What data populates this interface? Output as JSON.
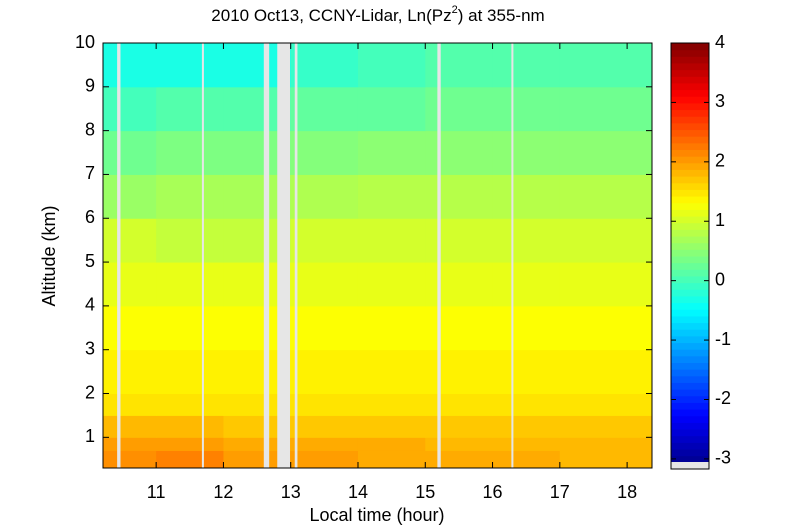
{
  "chart_data": {
    "type": "heatmap",
    "title": [
      "2010 Oct13, CCNY-Lidar, Ln(Pz",
      "2",
      ") at 355-nm"
    ],
    "xlabel": "Local time (hour)",
    "ylabel": "Altitude (km)",
    "xbins": [
      10.21,
      11,
      12,
      13,
      14,
      15,
      16,
      17,
      18.37
    ],
    "ybins": [
      0.3,
      0.7,
      1,
      1.5,
      2,
      3,
      4,
      5,
      6,
      7,
      8,
      9,
      10
    ],
    "values": [
      [
        2.1,
        2.2,
        2.0,
        2.0,
        1.9,
        1.9,
        1.9,
        1.8
      ],
      [
        2.0,
        2.0,
        1.9,
        1.9,
        1.9,
        1.8,
        1.8,
        1.8
      ],
      [
        1.8,
        1.8,
        1.7,
        1.7,
        1.7,
        1.7,
        1.7,
        1.7
      ],
      [
        1.5,
        1.5,
        1.5,
        1.5,
        1.5,
        1.5,
        1.5,
        1.5
      ],
      [
        1.4,
        1.4,
        1.4,
        1.4,
        1.4,
        1.4,
        1.4,
        1.4
      ],
      [
        1.3,
        1.3,
        1.3,
        1.3,
        1.3,
        1.3,
        1.3,
        1.3
      ],
      [
        1.15,
        1.15,
        1.15,
        1.15,
        1.15,
        1.15,
        1.15,
        1.15
      ],
      [
        1.0,
        0.9,
        0.9,
        1.0,
        1.0,
        1.0,
        1.0,
        1.0
      ],
      [
        0.6,
        0.7,
        0.7,
        0.75,
        0.8,
        0.8,
        0.8,
        0.8
      ],
      [
        0.3,
        0.4,
        0.4,
        0.45,
        0.5,
        0.5,
        0.5,
        0.5
      ],
      [
        0.0,
        0.1,
        0.1,
        0.2,
        0.2,
        0.3,
        0.3,
        0.3
      ],
      [
        -0.3,
        -0.3,
        -0.3,
        -0.1,
        0.0,
        0.1,
        0.1,
        0.1
      ]
    ],
    "gaps": [
      [
        10.42,
        10.47
      ],
      [
        11.68,
        11.71
      ],
      [
        12.6,
        12.68
      ],
      [
        12.8,
        12.99
      ],
      [
        13.06,
        13.1
      ],
      [
        15.18,
        15.23
      ],
      [
        16.28,
        16.31
      ]
    ],
    "xlim": [
      10.21,
      18.37
    ],
    "ylim": [
      0.3,
      10
    ],
    "xticks": [
      11,
      12,
      13,
      14,
      15,
      16,
      17,
      18
    ],
    "yticks": [
      1,
      2,
      3,
      4,
      5,
      6,
      7,
      8,
      9,
      10
    ],
    "colormap": "jet",
    "clim": [
      -3.17,
      4
    ],
    "cticks": [
      -3,
      -2,
      -1,
      0,
      1,
      2,
      3,
      4
    ]
  }
}
